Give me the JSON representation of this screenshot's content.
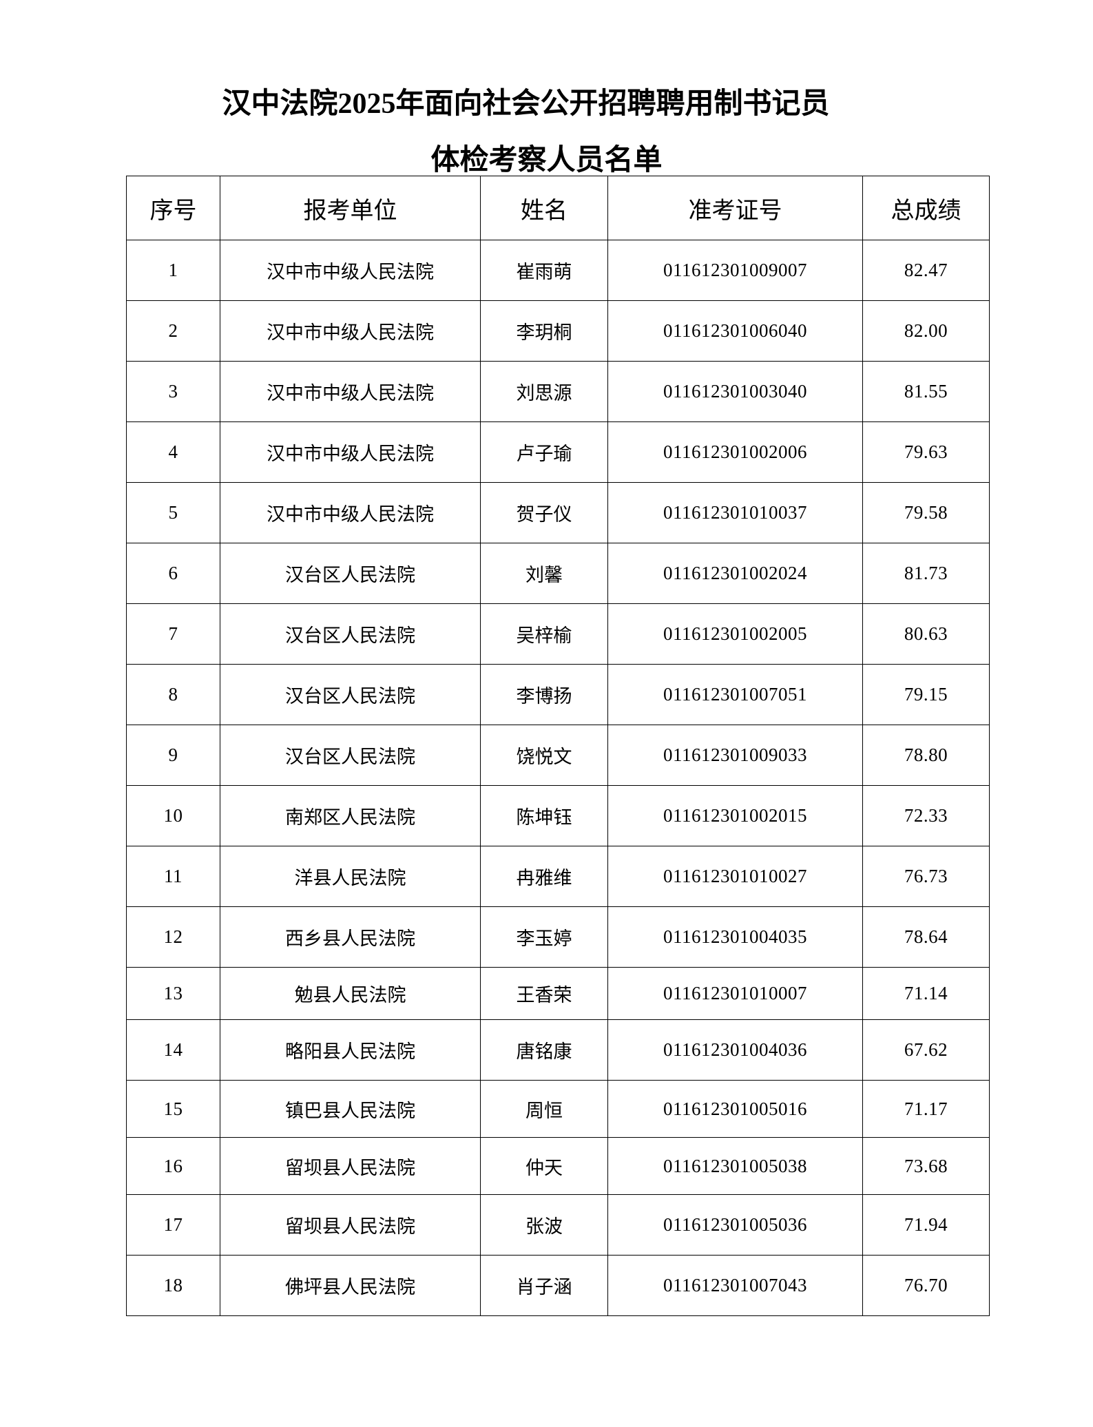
{
  "title": {
    "line1": "汉中法院2025年面向社会公开招聘聘用制书记员",
    "line2": "体检考察人员名单"
  },
  "table": {
    "headers": [
      "序号",
      "报考单位",
      "姓名",
      "准考证号",
      "总成绩"
    ],
    "rows": [
      [
        "1",
        "汉中市中级人民法院",
        "崔雨萌",
        "011612301009007",
        "82.47"
      ],
      [
        "2",
        "汉中市中级人民法院",
        "李玥桐",
        "011612301006040",
        "82.00"
      ],
      [
        "3",
        "汉中市中级人民法院",
        "刘思源",
        "011612301003040",
        "81.55"
      ],
      [
        "4",
        "汉中市中级人民法院",
        "卢子瑜",
        "011612301002006",
        "79.63"
      ],
      [
        "5",
        "汉中市中级人民法院",
        "贺子仪",
        "011612301010037",
        "79.58"
      ],
      [
        "6",
        "汉台区人民法院",
        "刘馨",
        "011612301002024",
        "81.73"
      ],
      [
        "7",
        "汉台区人民法院",
        "吴梓榆",
        "011612301002005",
        "80.63"
      ],
      [
        "8",
        "汉台区人民法院",
        "李博扬",
        "011612301007051",
        "79.15"
      ],
      [
        "9",
        "汉台区人民法院",
        "饶悦文",
        "011612301009033",
        "78.80"
      ],
      [
        "10",
        "南郑区人民法院",
        "陈坤钰",
        "011612301002015",
        "72.33"
      ],
      [
        "11",
        "洋县人民法院",
        "冉雅维",
        "011612301010027",
        "76.73"
      ],
      [
        "12",
        "西乡县人民法院",
        "李玉婷",
        "011612301004035",
        "78.64"
      ],
      [
        "13",
        "勉县人民法院",
        "王香荣",
        "011612301010007",
        "71.14"
      ],
      [
        "14",
        "略阳县人民法院",
        "唐铭康",
        "011612301004036",
        "67.62"
      ],
      [
        "15",
        "镇巴县人民法院",
        "周恒",
        "011612301005016",
        "71.17"
      ],
      [
        "16",
        "留坝县人民法院",
        "仲天",
        "011612301005038",
        "73.68"
      ],
      [
        "17",
        "留坝县人民法院",
        "张波",
        "011612301005036",
        "71.94"
      ],
      [
        "18",
        "佛坪县人民法院",
        "肖子涵",
        "011612301007043",
        "76.70"
      ]
    ]
  }
}
